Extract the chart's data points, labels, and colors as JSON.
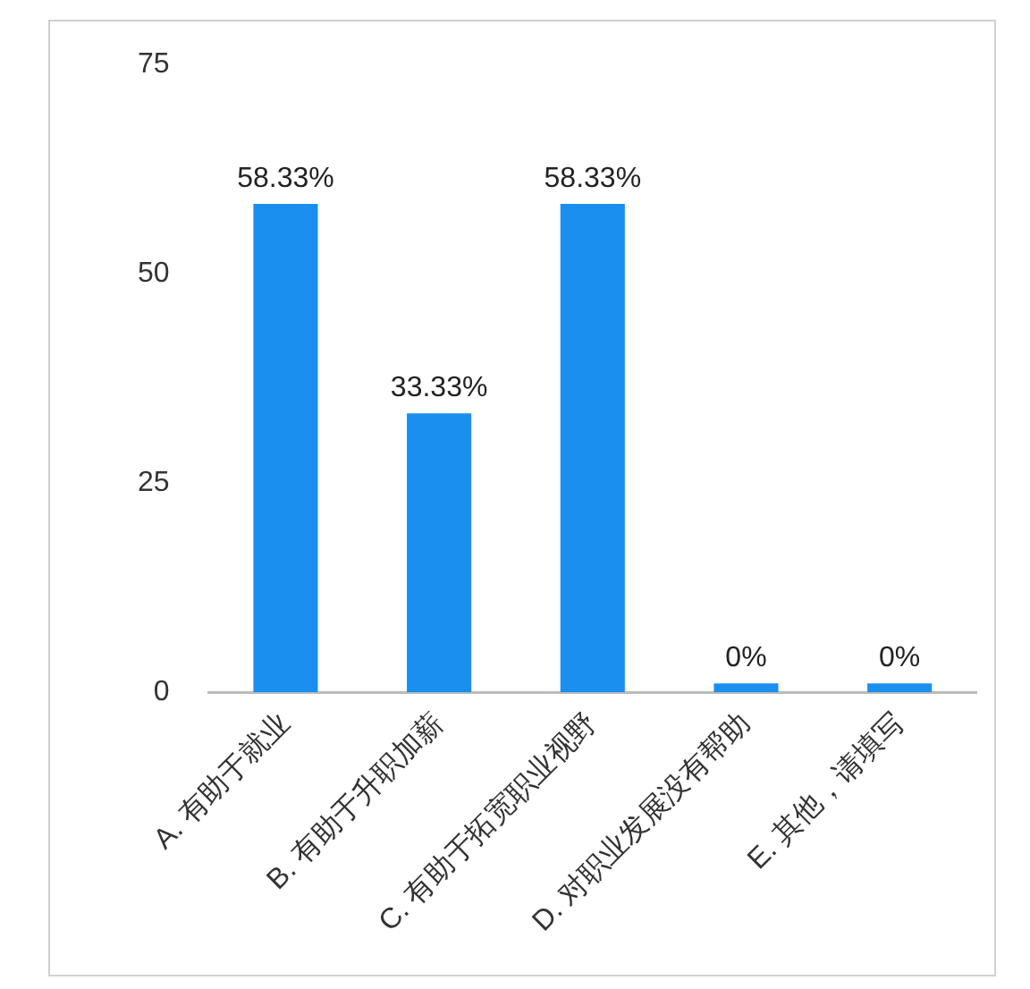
{
  "chart_data": {
    "type": "bar",
    "categories": [
      "A. 有助于就业",
      "B. 有助于升职加薪",
      "C. 有助于拓宽职业视野",
      "D. 对职业发展没有帮助",
      "E. 其他，请填写"
    ],
    "values": [
      58.33,
      33.33,
      58.33,
      0,
      0
    ],
    "value_labels": [
      "58.33%",
      "33.33%",
      "58.33%",
      "0%",
      "0%"
    ],
    "color": "#1a8ff0",
    "ylim": [
      0,
      75
    ],
    "yticks": [
      0,
      25,
      50,
      75
    ],
    "grid": false,
    "legend": false
  }
}
